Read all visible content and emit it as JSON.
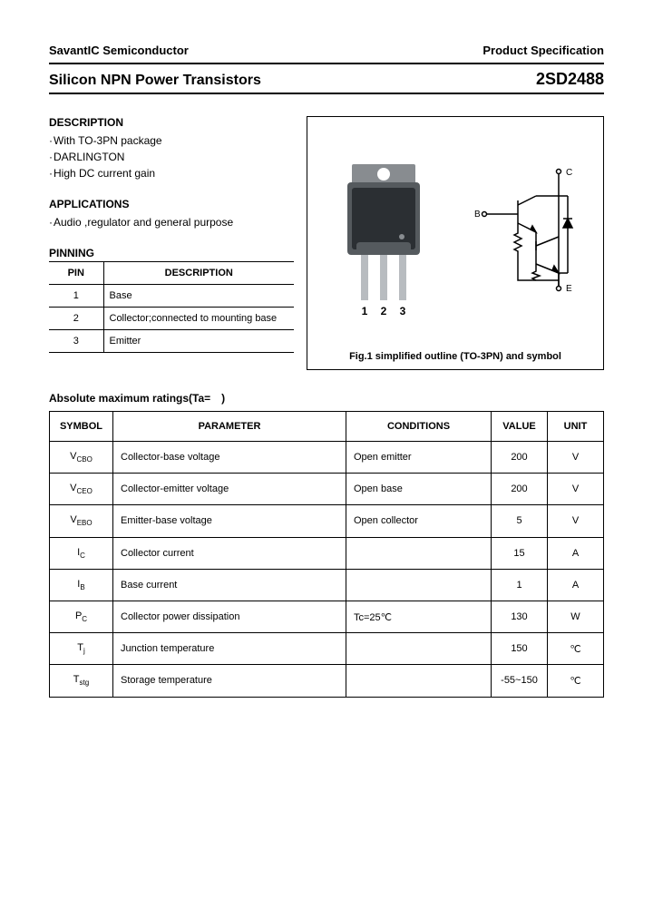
{
  "header": {
    "left": "SavantIC Semiconductor",
    "right": "Product Specification"
  },
  "title": {
    "left": "Silicon NPN Power Transistors",
    "right": "2SD2488"
  },
  "description": {
    "heading": "DESCRIPTION",
    "items": [
      "With TO-3PN package",
      "DARLINGTON",
      "High DC current gain"
    ]
  },
  "applications": {
    "heading": "APPLICATIONS",
    "items": [
      "Audio ,regulator and general purpose"
    ]
  },
  "pinning": {
    "heading": "PINNING",
    "columns": [
      "PIN",
      "DESCRIPTION"
    ],
    "rows": [
      {
        "pin": "1",
        "desc": "Base"
      },
      {
        "pin": "2",
        "desc": "Collector;connected to mounting base"
      },
      {
        "pin": "3",
        "desc": "Emitter"
      }
    ]
  },
  "figure": {
    "caption": "Fig.1 simplified outline (TO-3PN) and symbol",
    "pin_labels": [
      "1",
      "2",
      "3"
    ],
    "terminals": {
      "b": "B",
      "c": "C",
      "e": "E"
    },
    "colors": {
      "pkg_body": "#555a5e",
      "pkg_dark": "#2b2f33",
      "pkg_tab": "#888c90",
      "lead": "#b8bcc0",
      "stroke": "#000000"
    }
  },
  "ratings": {
    "heading": "Absolute maximum ratings(Ta=　)",
    "columns": [
      "SYMBOL",
      "PARAMETER",
      "CONDITIONS",
      "VALUE",
      "UNIT"
    ],
    "rows": [
      {
        "symbol": "V",
        "sub": "CBO",
        "param": "Collector-base voltage",
        "cond": "Open emitter",
        "value": "200",
        "unit": "V"
      },
      {
        "symbol": "V",
        "sub": "CEO",
        "param": "Collector-emitter voltage",
        "cond": "Open base",
        "value": "200",
        "unit": "V"
      },
      {
        "symbol": "V",
        "sub": "EBO",
        "param": "Emitter-base voltage",
        "cond": "Open collector",
        "value": "5",
        "unit": "V"
      },
      {
        "symbol": "I",
        "sub": "C",
        "param": "Collector current",
        "cond": "",
        "value": "15",
        "unit": "A"
      },
      {
        "symbol": "I",
        "sub": "B",
        "param": "Base current",
        "cond": "",
        "value": "1",
        "unit": "A"
      },
      {
        "symbol": "P",
        "sub": "C",
        "param": "Collector power dissipation",
        "cond": "Tc=25℃",
        "value": "130",
        "unit": "W"
      },
      {
        "symbol": "T",
        "sub": "j",
        "param": "Junction temperature",
        "cond": "",
        "value": "150",
        "unit": "℃"
      },
      {
        "symbol": "T",
        "sub": "stg",
        "param": "Storage temperature",
        "cond": "",
        "value": "-55~150",
        "unit": "℃"
      }
    ]
  }
}
